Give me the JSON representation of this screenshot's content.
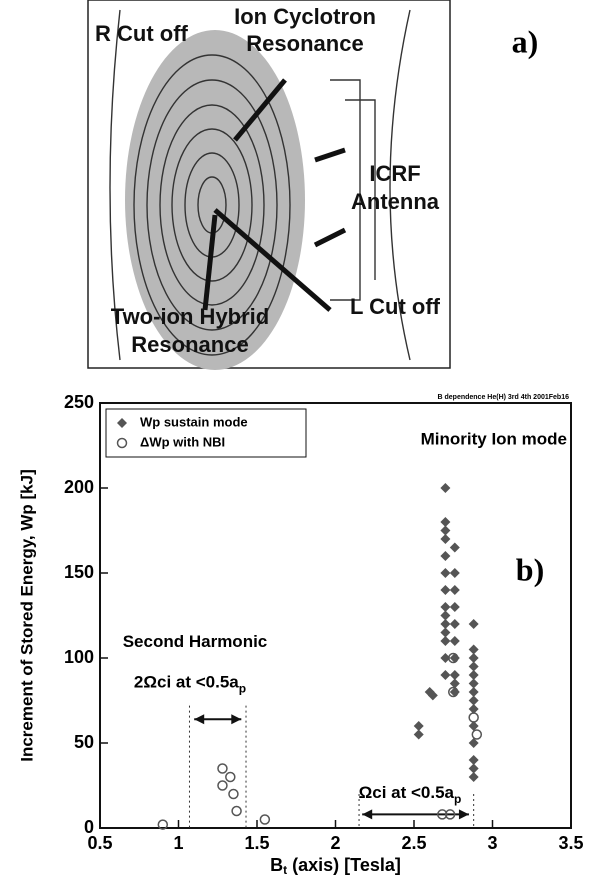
{
  "diagram": {
    "label": "a)",
    "r_cutoff": "R Cut off",
    "ion_cyclotron": [
      "Ion Cyclotron",
      "Resonance"
    ],
    "icrf": [
      "ICRF",
      "Antenna"
    ],
    "two_ion": [
      "Two-ion Hybrid",
      "Resonance"
    ],
    "l_cutoff": "L Cut off"
  },
  "chart_data": {
    "type": "scatter",
    "panel_label": "b)",
    "header_note": "B dependence  He(H)  3rd  4th  2001Feb16",
    "annotation": "Minority Ion mode",
    "second_harmonic": "Second Harmonic",
    "second_harmonic_cond": {
      "text": "2Ωci at <0.5a",
      "sub": "p"
    },
    "fundamental_cond": {
      "text": "Ωci at <0.5a",
      "sub": "p"
    },
    "x_label": {
      "main": "B",
      "sub": "t",
      "rest": " (axis) [Tesla]"
    },
    "y_label": "Increment of Stored Energy, Wp  [kJ]",
    "xlim": [
      0.5,
      3.5
    ],
    "xticks": [
      0.5,
      1,
      1.5,
      2,
      2.5,
      3,
      3.5
    ],
    "ylim": [
      0,
      250
    ],
    "yticks": [
      0,
      50,
      100,
      150,
      200,
      250
    ],
    "series": [
      {
        "name": "Wp  sustain mode",
        "color": "#555555",
        "marker": "diamond",
        "x": [
          2.53,
          2.53,
          2.6,
          2.62,
          2.7,
          2.7,
          2.7,
          2.7,
          2.7,
          2.7,
          2.7,
          2.7,
          2.7,
          2.7,
          2.7,
          2.7,
          2.7,
          2.7,
          2.76,
          2.76,
          2.76,
          2.76,
          2.76,
          2.76,
          2.76,
          2.76,
          2.76,
          2.76,
          2.88,
          2.88,
          2.88,
          2.88,
          2.88,
          2.88,
          2.88,
          2.88,
          2.88,
          2.88,
          2.88,
          2.88,
          2.88,
          2.88
        ],
        "y": [
          60,
          55,
          80,
          78,
          200,
          180,
          175,
          170,
          160,
          150,
          140,
          130,
          125,
          120,
          115,
          110,
          100,
          90,
          165,
          150,
          140,
          130,
          120,
          110,
          100,
          90,
          85,
          80,
          120,
          105,
          100,
          95,
          90,
          85,
          80,
          75,
          70,
          60,
          50,
          40,
          35,
          30
        ]
      },
      {
        "name": "ΔWp  with NBI",
        "color": "#555555",
        "marker": "circle",
        "x": [
          0.9,
          1.28,
          1.28,
          1.33,
          1.35,
          1.37,
          1.55,
          2.68,
          2.73,
          2.75,
          2.75,
          2.88,
          2.9
        ],
        "y": [
          2,
          35,
          25,
          30,
          20,
          10,
          5,
          8,
          8,
          100,
          80,
          65,
          55
        ]
      }
    ]
  }
}
